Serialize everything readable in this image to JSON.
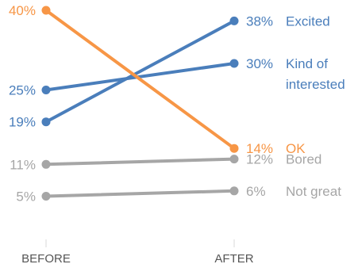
{
  "chart_data": {
    "type": "line",
    "x": [
      "BEFORE",
      "AFTER"
    ],
    "ylim": [
      0,
      40
    ],
    "grid": false,
    "legend": "none",
    "series": [
      {
        "name": "Excited",
        "values": [
          19,
          38
        ],
        "color": "#4A7EBB",
        "left_label": "19%",
        "right_label": "38%",
        "name_lines": [
          "Excited"
        ]
      },
      {
        "name": "Kind of interested",
        "values": [
          25,
          30
        ],
        "color": "#4A7EBB",
        "left_label": "25%",
        "right_label": "30%",
        "name_lines": [
          "Kind of",
          "interested"
        ]
      },
      {
        "name": "OK",
        "values": [
          40,
          14
        ],
        "color": "#F79646",
        "left_label": "40%",
        "right_label": "14%",
        "name_lines": [
          "OK"
        ]
      },
      {
        "name": "Bored",
        "values": [
          11,
          12
        ],
        "color": "#A6A6A6",
        "left_label": "11%",
        "right_label": "12%",
        "name_lines": [
          "Bored"
        ]
      },
      {
        "name": "Not great",
        "values": [
          5,
          6
        ],
        "color": "#A6A6A6",
        "left_label": "5%",
        "right_label": "6%",
        "name_lines": [
          "Not great"
        ]
      }
    ]
  }
}
